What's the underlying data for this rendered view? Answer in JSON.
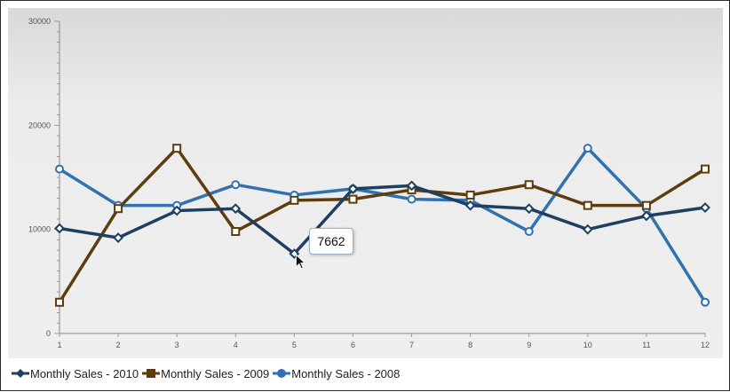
{
  "chart_data": {
    "type": "line",
    "x": [
      1,
      2,
      3,
      4,
      5,
      6,
      7,
      8,
      9,
      10,
      11,
      12
    ],
    "xlim": [
      1,
      12
    ],
    "ylim": [
      0,
      30000
    ],
    "y_ticks": [
      "0",
      "10000",
      "20000",
      "30000"
    ],
    "x_ticks": [
      "1",
      "2",
      "3",
      "4",
      "5",
      "6",
      "7",
      "8",
      "9",
      "10",
      "11",
      "12"
    ],
    "grid": false,
    "legend_position": "bottom-left",
    "series": [
      {
        "name": "Monthly Sales - 2010",
        "color": "#1e3f62",
        "marker": "diamond",
        "values": [
          10100,
          9200,
          11800,
          12000,
          7662,
          13900,
          14200,
          12300,
          12000,
          10000,
          11300,
          12100
        ]
      },
      {
        "name": "Monthly Sales - 2009",
        "color": "#5e3c0e",
        "marker": "square",
        "values": [
          3000,
          12000,
          17800,
          9800,
          12800,
          12900,
          13800,
          13300,
          14300,
          12300,
          12300,
          15800
        ]
      },
      {
        "name": "Monthly Sales - 2008",
        "color": "#3171b0",
        "marker": "circle",
        "values": [
          15800,
          12300,
          12300,
          14300,
          13300,
          13900,
          12900,
          12800,
          9800,
          17800,
          12000,
          3000
        ]
      }
    ],
    "tooltip": {
      "series_index": 0,
      "point_index": 4,
      "text": "7662"
    }
  }
}
